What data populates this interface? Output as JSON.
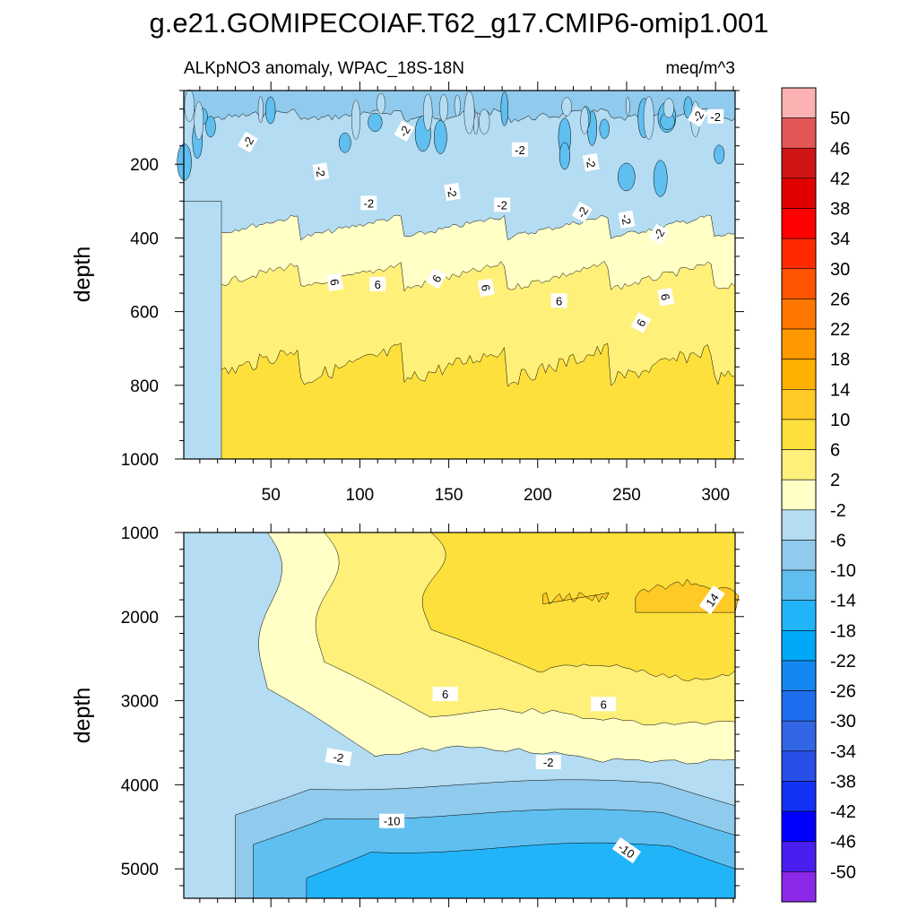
{
  "title": "g.e21.GOMIPECOIAF.T62_g17.CMIP6-omip1.001",
  "chart_data": [
    {
      "type": "heatmap",
      "subtitle_left": "ALKpNO3 anomaly, WPAC_18S-18N",
      "subtitle_right": "meq/m^3",
      "ylabel": "depth",
      "xlabel": "",
      "xlim": [
        1,
        311
      ],
      "ylim": [
        0,
        1000
      ],
      "y_inverted": true,
      "x_ticks": [
        50,
        100,
        150,
        200,
        250,
        300
      ],
      "y_ticks": [
        200,
        400,
        600,
        800,
        1000
      ],
      "bands": [
        {
          "level": -6,
          "depth_top": 0,
          "depth_bottom": 55,
          "note": "-10 to -6 pockets near surface"
        },
        {
          "level": -2,
          "depth_top": 55,
          "depth_bottom": 340
        },
        {
          "level": 2,
          "depth_top": 340,
          "depth_bottom": 470
        },
        {
          "level": 6,
          "depth_top": 470,
          "depth_bottom": 700
        },
        {
          "level": 10,
          "depth_top": 700,
          "depth_bottom": 1000
        }
      ],
      "contour_labels": [
        "-2",
        "-2",
        "-2",
        "-2",
        "-2",
        "-2",
        "-2",
        "-2",
        "-2",
        "-2",
        "-2",
        "-2",
        "-2",
        "6",
        "6",
        "6",
        "6",
        "6",
        "6",
        "6"
      ]
    },
    {
      "type": "heatmap",
      "ylabel": "depth",
      "xlabel": "",
      "xlim": [
        1,
        311
      ],
      "ylim": [
        1000,
        5350
      ],
      "y_inverted": true,
      "y_ticks": [
        1000,
        2000,
        3000,
        4000,
        5000
      ],
      "bands": [
        {
          "level": 14,
          "depth_top": 1600,
          "depth_bottom": 1950
        },
        {
          "level": 10,
          "depth_top": 1000,
          "depth_bottom": 2650
        },
        {
          "level": 6,
          "depth_top": 2650,
          "depth_bottom": 3200
        },
        {
          "level": 2,
          "depth_top": 3200,
          "depth_bottom": 3650
        },
        {
          "level": -2,
          "depth_top": 3650,
          "depth_bottom": 4000
        },
        {
          "level": -6,
          "depth_top": 4000,
          "depth_bottom": 4350
        },
        {
          "level": -10,
          "depth_top": 4350,
          "depth_bottom": 4750
        },
        {
          "level": -14,
          "depth_top": 4750,
          "depth_bottom": 5350
        }
      ],
      "contour_labels": [
        "14",
        "6",
        "6",
        "-2",
        "-2",
        "-10",
        "-10"
      ]
    }
  ],
  "colorbar": {
    "labels": [
      "50",
      "46",
      "42",
      "38",
      "34",
      "30",
      "26",
      "22",
      "18",
      "14",
      "10",
      "6",
      "2",
      "-2",
      "-6",
      "-10",
      "-14",
      "-18",
      "-22",
      "-26",
      "-30",
      "-34",
      "-38",
      "-42",
      "-46",
      "-50"
    ],
    "colors": [
      "#fcb2b2",
      "#e35656",
      "#cf1414",
      "#e00000",
      "#ff0000",
      "#ff2a00",
      "#ff5500",
      "#ff7700",
      "#ff9900",
      "#ffb000",
      "#ffc926",
      "#fde03c",
      "#fff07a",
      "#ffffc6",
      "#b4dcf2",
      "#90caec",
      "#5fbff0",
      "#22b4f8",
      "#00a8f8",
      "#1488f0",
      "#1e6ef0",
      "#3266e4",
      "#2850e8",
      "#1432f6",
      "#0000ff",
      "#4a1ef0",
      "#8c28e8"
    ]
  }
}
